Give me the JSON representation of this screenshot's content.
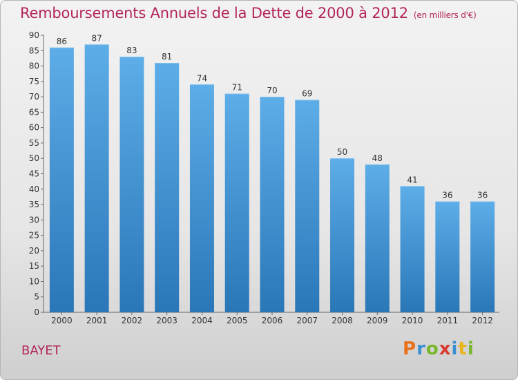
{
  "header": {
    "title": "Remboursements Annuels de la Dette de 2000 à 2012",
    "subtitle": "(en milliers d'€)"
  },
  "footer": {
    "city": "BAYET",
    "logo_letters": [
      "P",
      "r",
      "o",
      "x",
      "i",
      "t",
      "i"
    ],
    "logo_colors": [
      "#e8711c",
      "#3a8fd1",
      "#78b72a",
      "#d93a2f",
      "#3a8fd1",
      "#e8b51c",
      "#78b72a"
    ]
  },
  "colors": {
    "bar_light": "#5dade8",
    "bar_dark": "#2a77b8",
    "title": "#b3255b"
  },
  "chart_data": {
    "type": "bar",
    "title": "Remboursements Annuels de la Dette de 2000 à 2012",
    "subtitle": "(en milliers d'€)",
    "categories": [
      "2000",
      "2001",
      "2002",
      "2003",
      "2004",
      "2005",
      "2006",
      "2007",
      "2008",
      "2009",
      "2010",
      "2011",
      "2012"
    ],
    "values": [
      86,
      87,
      83,
      81,
      74,
      71,
      70,
      69,
      50,
      48,
      41,
      36,
      36
    ],
    "ylim": [
      0,
      90
    ],
    "yticks": [
      0,
      5,
      10,
      15,
      20,
      25,
      30,
      35,
      40,
      45,
      50,
      55,
      60,
      65,
      70,
      75,
      80,
      85,
      90
    ],
    "grid": false,
    "data_labels": true
  }
}
